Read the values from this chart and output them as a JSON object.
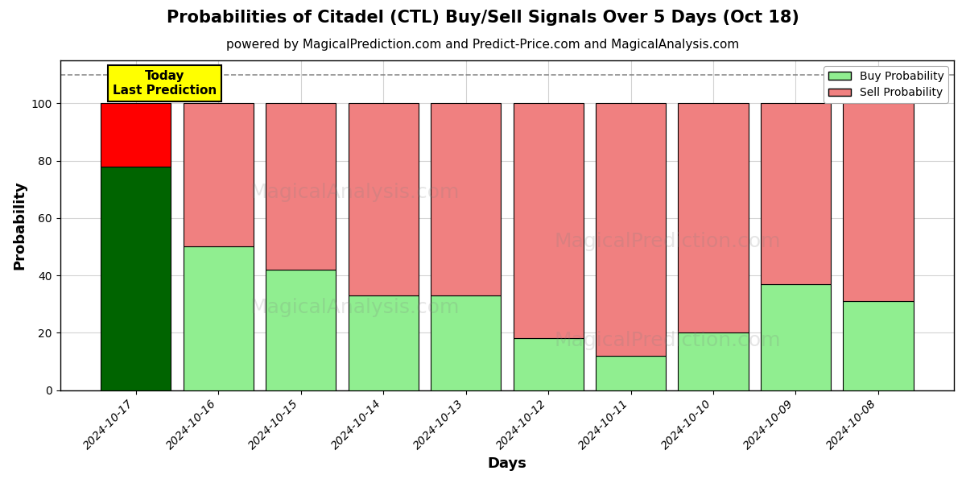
{
  "title": "Probabilities of Citadel (CTL) Buy/Sell Signals Over 5 Days (Oct 18)",
  "subtitle": "powered by MagicalPrediction.com and Predict-Price.com and MagicalAnalysis.com",
  "xlabel": "Days",
  "ylabel": "Probability",
  "days": [
    "2024-10-17",
    "2024-10-16",
    "2024-10-15",
    "2024-10-14",
    "2024-10-13",
    "2024-10-12",
    "2024-10-11",
    "2024-10-10",
    "2024-10-09",
    "2024-10-08"
  ],
  "buy_probs": [
    78,
    50,
    42,
    33,
    33,
    18,
    12,
    20,
    37,
    31
  ],
  "sell_probs": [
    22,
    50,
    58,
    67,
    67,
    82,
    88,
    80,
    63,
    69
  ],
  "today_buy_color": "#006400",
  "today_sell_color": "#ff0000",
  "buy_color": "#90EE90",
  "sell_color": "#F08080",
  "today_label_bg": "#ffff00",
  "today_label_text": "Today\nLast Prediction",
  "legend_buy": "Buy Probability",
  "legend_sell": "Sell Probability",
  "ylim": [
    0,
    115
  ],
  "dashed_line_y": 110,
  "background_color": "#ffffff",
  "title_fontsize": 15,
  "subtitle_fontsize": 11,
  "axis_label_fontsize": 13,
  "tick_fontsize": 10,
  "bar_width": 0.85
}
